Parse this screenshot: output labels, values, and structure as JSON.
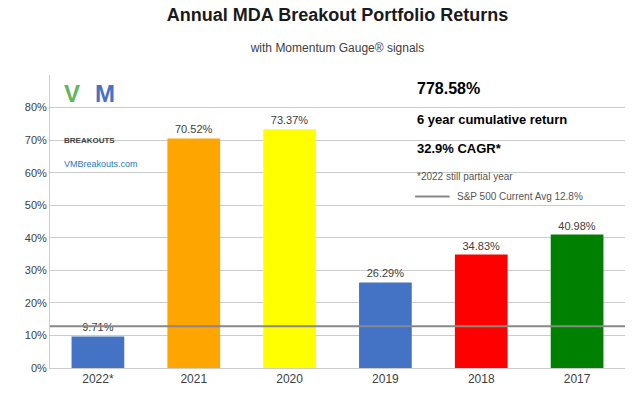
{
  "chart_data": {
    "type": "bar",
    "title": "Annual MDA Breakout Portfolio Returns",
    "subtitle": "with Momentum Gauge® signals",
    "categories": [
      "2022*",
      "2021",
      "2020",
      "2019",
      "2018",
      "2017"
    ],
    "values": [
      9.71,
      70.52,
      73.37,
      26.29,
      34.83,
      40.98
    ],
    "value_labels": [
      "9.71%",
      "70.52%",
      "73.37%",
      "26.29%",
      "34.83%",
      "40.98%"
    ],
    "data_labels": true,
    "colors": [
      "#4472C4",
      "#FFA500",
      "#FFFF00",
      "#4472C4",
      "#FF0000",
      "#008000"
    ],
    "ylim": [
      0,
      90
    ],
    "yticks": [
      {
        "value": 0,
        "label": "0%"
      },
      {
        "value": 10,
        "label": "10%"
      },
      {
        "value": 20,
        "label": "20%"
      },
      {
        "value": 30,
        "label": "30%"
      },
      {
        "value": 40,
        "label": "40%"
      },
      {
        "value": 50,
        "label": "50%"
      },
      {
        "value": 60,
        "label": "60%"
      },
      {
        "value": 70,
        "label": "70%"
      },
      {
        "value": 80,
        "label": "80%"
      }
    ],
    "grid": true,
    "reference_line": {
      "value": 12.8,
      "label": "S&P 500 Current Avg 12.8%"
    },
    "annotations": [
      "778.58%",
      "6 year cumulative return",
      "32.9% CAGR*",
      "*2022 still partial year",
      "V",
      "M",
      "BREAKOUTS",
      "VMBreakouts.com"
    ]
  }
}
